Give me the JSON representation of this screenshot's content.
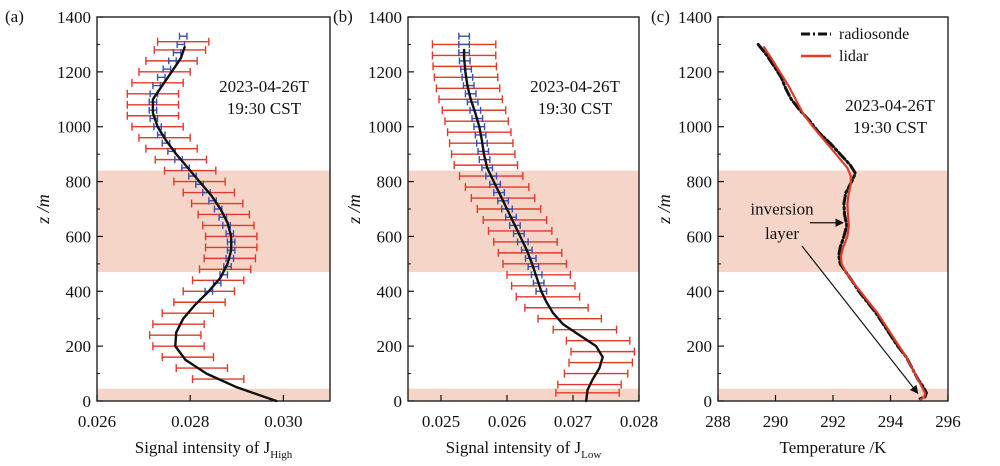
{
  "figure": {
    "shade_color": "#f5d5c8",
    "colors": {
      "black": "#111111",
      "red": "#e23a2a",
      "blue": "#3a4fb0"
    }
  },
  "chart_data": [
    {
      "type": "line",
      "panel_label": "(a)",
      "annotation": [
        "2023-04-26T",
        "19:30 CST"
      ],
      "ylabel": "z /m",
      "xlabel": "Signal intensity of J",
      "xlabel_sub": "High",
      "xlim": [
        0.026,
        0.031
      ],
      "ylim": [
        0,
        1400
      ],
      "xticks": [
        "0.026",
        "0.028",
        "0.030"
      ],
      "xtick_values": [
        0.026,
        0.028,
        0.03
      ],
      "yticks": [
        "0",
        "200",
        "400",
        "600",
        "800",
        "1000",
        "1200",
        "1400"
      ],
      "shaded_bands": [
        [
          0,
          45
        ],
        [
          470,
          840
        ]
      ],
      "series": [
        {
          "style": "black-line",
          "z": [
            0,
            50,
            100,
            150,
            200,
            250,
            300,
            350,
            400,
            450,
            500,
            550,
            600,
            650,
            700,
            750,
            800,
            850,
            900,
            950,
            1000,
            1050,
            1100,
            1150,
            1200,
            1250,
            1290
          ],
          "x": [
            0.02985,
            0.029,
            0.02835,
            0.0279,
            0.02768,
            0.0277,
            0.02785,
            0.0281,
            0.0284,
            0.02865,
            0.0288,
            0.02888,
            0.02888,
            0.0288,
            0.02865,
            0.02845,
            0.0282,
            0.02795,
            0.0277,
            0.02748,
            0.0273,
            0.0272,
            0.0272,
            0.0274,
            0.0276,
            0.0278,
            0.02788
          ]
        },
        {
          "style": "red-errorbars",
          "xerr": 0.00055,
          "z": [
            80,
            120,
            160,
            200,
            240,
            280,
            320,
            360,
            400,
            440,
            480,
            520,
            560,
            600,
            640,
            680,
            720,
            760,
            800,
            840,
            880,
            920,
            960,
            1000,
            1040,
            1080,
            1120,
            1160,
            1200,
            1240,
            1280,
            1310
          ],
          "x": [
            0.0286,
            0.02825,
            0.02795,
            0.02775,
            0.02768,
            0.02775,
            0.02795,
            0.0282,
            0.0284,
            0.0286,
            0.02875,
            0.02885,
            0.02888,
            0.02888,
            0.02882,
            0.02872,
            0.02858,
            0.0284,
            0.0282,
            0.028,
            0.0278,
            0.0276,
            0.02745,
            0.0273,
            0.0272,
            0.0272,
            0.0272,
            0.0273,
            0.02745,
            0.0276,
            0.02778,
            0.02785
          ]
        },
        {
          "style": "blue-errorbars",
          "xerr": 8e-05,
          "z": [
            400,
            430,
            460,
            490,
            520,
            550,
            580,
            610,
            640,
            670,
            700,
            730,
            760,
            790,
            820,
            850,
            880,
            910,
            940,
            970,
            1000,
            1030,
            1060,
            1090,
            1120,
            1150,
            1180,
            1210,
            1240,
            1270,
            1300,
            1330
          ],
          "x": [
            0.0284,
            0.02858,
            0.02872,
            0.0288,
            0.02885,
            0.02888,
            0.02888,
            0.02885,
            0.02878,
            0.0287,
            0.0286,
            0.02848,
            0.02835,
            0.0282,
            0.02805,
            0.0279,
            0.02775,
            0.0276,
            0.02748,
            0.02738,
            0.0273,
            0.02722,
            0.0272,
            0.0272,
            0.02722,
            0.02728,
            0.02738,
            0.0275,
            0.02762,
            0.02772,
            0.0278,
            0.02785
          ]
        }
      ]
    },
    {
      "type": "line",
      "panel_label": "(b)",
      "annotation": [
        "2023-04-26T",
        "19:30 CST"
      ],
      "ylabel": "z /m",
      "xlabel": "Signal intensity of J",
      "xlabel_sub": "Low",
      "xlim": [
        0.0245,
        0.028
      ],
      "ylim": [
        0,
        1400
      ],
      "xticks": [
        "0.025",
        "0.026",
        "0.027",
        "0.028"
      ],
      "xtick_values": [
        0.025,
        0.026,
        0.027,
        0.028
      ],
      "yticks": [
        "0",
        "200",
        "400",
        "600",
        "800",
        "1000",
        "1200",
        "1400"
      ],
      "shaded_bands": [
        [
          0,
          45
        ],
        [
          470,
          840
        ]
      ],
      "series": [
        {
          "style": "black-line",
          "z": [
            0,
            40,
            80,
            120,
            160,
            200,
            240,
            280,
            320,
            360,
            400,
            450,
            500,
            550,
            600,
            650,
            700,
            750,
            800,
            850,
            900,
            950,
            1000,
            1050,
            1100,
            1150,
            1200,
            1250,
            1280
          ],
          "x": [
            0.0272,
            0.02722,
            0.0273,
            0.0274,
            0.02745,
            0.02735,
            0.0271,
            0.02685,
            0.0267,
            0.0266,
            0.02652,
            0.02645,
            0.02638,
            0.0263,
            0.0262,
            0.0261,
            0.026,
            0.0259,
            0.0258,
            0.0257,
            0.02565,
            0.02562,
            0.02558,
            0.02552,
            0.02545,
            0.0254,
            0.02537,
            0.02535,
            0.02535
          ]
        },
        {
          "style": "red-errorbars",
          "xerr": 0.00048,
          "z": [
            30,
            60,
            100,
            140,
            180,
            220,
            260,
            300,
            340,
            380,
            420,
            460,
            500,
            540,
            580,
            620,
            660,
            700,
            740,
            780,
            820,
            860,
            900,
            940,
            980,
            1020,
            1060,
            1100,
            1140,
            1180,
            1220,
            1260,
            1300
          ],
          "x": [
            0.02722,
            0.02725,
            0.02735,
            0.02742,
            0.02745,
            0.02738,
            0.02718,
            0.02695,
            0.02675,
            0.02662,
            0.02655,
            0.02648,
            0.02642,
            0.02635,
            0.02628,
            0.0262,
            0.02612,
            0.02603,
            0.02594,
            0.02585,
            0.02576,
            0.02568,
            0.02564,
            0.02561,
            0.02558,
            0.02554,
            0.0255,
            0.02545,
            0.02541,
            0.02538,
            0.02536,
            0.02535,
            0.02535
          ]
        },
        {
          "style": "blue-errorbars",
          "xerr": 8e-05,
          "z": [
            400,
            430,
            460,
            490,
            520,
            550,
            580,
            610,
            640,
            670,
            700,
            730,
            760,
            790,
            820,
            850,
            880,
            910,
            940,
            970,
            1000,
            1030,
            1060,
            1090,
            1120,
            1150,
            1180,
            1210,
            1240,
            1270,
            1300,
            1330
          ],
          "x": [
            0.02652,
            0.02648,
            0.02645,
            0.0264,
            0.02636,
            0.0263,
            0.02624,
            0.02618,
            0.02612,
            0.02606,
            0.026,
            0.02594,
            0.02588,
            0.02582,
            0.02576,
            0.0257,
            0.02566,
            0.02564,
            0.02562,
            0.0256,
            0.02558,
            0.02555,
            0.02552,
            0.02548,
            0.02545,
            0.02542,
            0.0254,
            0.02538,
            0.02536,
            0.02535,
            0.02535,
            0.02535
          ]
        }
      ]
    },
    {
      "type": "line",
      "panel_label": "(c)",
      "annotation": [
        "2023-04-26T",
        "19:30 CST"
      ],
      "ylabel": "z /m",
      "xlabel": "Temperature /K",
      "xlim": [
        288,
        296
      ],
      "ylim": [
        0,
        1400
      ],
      "xticks": [
        "288",
        "290",
        "292",
        "294",
        "296"
      ],
      "xtick_values": [
        288,
        290,
        292,
        294,
        296
      ],
      "yticks": [
        "0",
        "200",
        "400",
        "600",
        "800",
        "1000",
        "1200",
        "1400"
      ],
      "shaded_bands": [
        [
          0,
          45
        ],
        [
          470,
          840
        ]
      ],
      "legend_position": "top-right",
      "legend": [
        "radiosonde",
        "lidar"
      ],
      "arrow_annotation": [
        "inversion",
        "layer"
      ],
      "series": [
        {
          "name": "radiosonde",
          "style": "black-dashdot",
          "z": [
            1300,
            1260,
            1220,
            1180,
            1140,
            1100,
            1060,
            1020,
            980,
            940,
            900,
            860,
            830,
            800,
            760,
            720,
            680,
            640,
            600,
            560,
            530,
            500,
            470,
            440,
            400,
            360,
            320,
            280,
            240,
            200,
            160,
            120,
            80,
            50,
            30,
            15,
            5
          ],
          "x": [
            289.4,
            289.7,
            289.95,
            290.2,
            290.35,
            290.55,
            290.85,
            291.2,
            291.5,
            291.9,
            292.25,
            292.6,
            292.78,
            292.65,
            292.45,
            292.38,
            292.4,
            292.48,
            292.38,
            292.25,
            292.2,
            292.25,
            292.45,
            292.65,
            292.9,
            293.2,
            293.5,
            293.75,
            294.0,
            294.25,
            294.55,
            294.75,
            294.95,
            295.15,
            295.25,
            295.2,
            294.95
          ]
        },
        {
          "name": "lidar",
          "style": "red-line",
          "z": [
            1290,
            1250,
            1200,
            1150,
            1100,
            1050,
            1000,
            950,
            900,
            850,
            820,
            790,
            760,
            720,
            680,
            640,
            600,
            560,
            530,
            500,
            470,
            440,
            400,
            360,
            320,
            280,
            240,
            200,
            160,
            120,
            80,
            50,
            30,
            15,
            5
          ],
          "x": [
            289.6,
            289.85,
            290.15,
            290.45,
            290.7,
            290.95,
            291.3,
            291.7,
            292.1,
            292.5,
            292.62,
            292.62,
            292.55,
            292.5,
            292.52,
            292.55,
            292.5,
            292.35,
            292.28,
            292.3,
            292.45,
            292.65,
            292.95,
            293.25,
            293.55,
            293.8,
            294.05,
            294.3,
            294.55,
            294.75,
            294.95,
            295.1,
            295.2,
            295.18,
            295.05
          ]
        }
      ]
    }
  ]
}
